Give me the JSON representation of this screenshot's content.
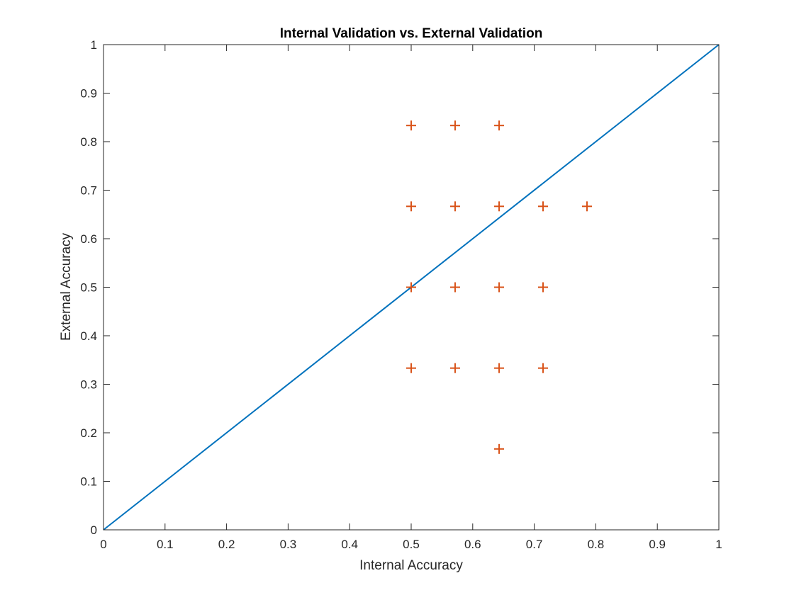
{
  "chart_data": {
    "type": "scatter",
    "title": "Internal Validation vs. External Validation",
    "xlabel": "Internal Accuracy",
    "ylabel": "External Accuracy",
    "xlim": [
      0,
      1
    ],
    "ylim": [
      0,
      1
    ],
    "xticks": [
      "0",
      "0.1",
      "0.2",
      "0.3",
      "0.4",
      "0.5",
      "0.6",
      "0.7",
      "0.8",
      "0.9",
      "1"
    ],
    "yticks": [
      "0",
      "0.1",
      "0.2",
      "0.3",
      "0.4",
      "0.5",
      "0.6",
      "0.7",
      "0.8",
      "0.9",
      "1"
    ],
    "grid": false,
    "series": [
      {
        "kind": "line",
        "color": "#0072BD",
        "x": [
          0,
          1
        ],
        "y": [
          0,
          1
        ]
      },
      {
        "kind": "scatter",
        "marker": "plus",
        "color": "#D95319",
        "points": [
          {
            "x": 0.5,
            "y": 0.8333
          },
          {
            "x": 0.5714,
            "y": 0.8333
          },
          {
            "x": 0.6429,
            "y": 0.8333
          },
          {
            "x": 0.5,
            "y": 0.6667
          },
          {
            "x": 0.5714,
            "y": 0.6667
          },
          {
            "x": 0.6429,
            "y": 0.6667
          },
          {
            "x": 0.7143,
            "y": 0.6667
          },
          {
            "x": 0.7857,
            "y": 0.6667
          },
          {
            "x": 0.5,
            "y": 0.5
          },
          {
            "x": 0.5714,
            "y": 0.5
          },
          {
            "x": 0.6429,
            "y": 0.5
          },
          {
            "x": 0.7143,
            "y": 0.5
          },
          {
            "x": 0.5,
            "y": 0.3333
          },
          {
            "x": 0.5714,
            "y": 0.3333
          },
          {
            "x": 0.6429,
            "y": 0.3333
          },
          {
            "x": 0.7143,
            "y": 0.3333
          },
          {
            "x": 0.6429,
            "y": 0.1667
          }
        ]
      }
    ]
  }
}
